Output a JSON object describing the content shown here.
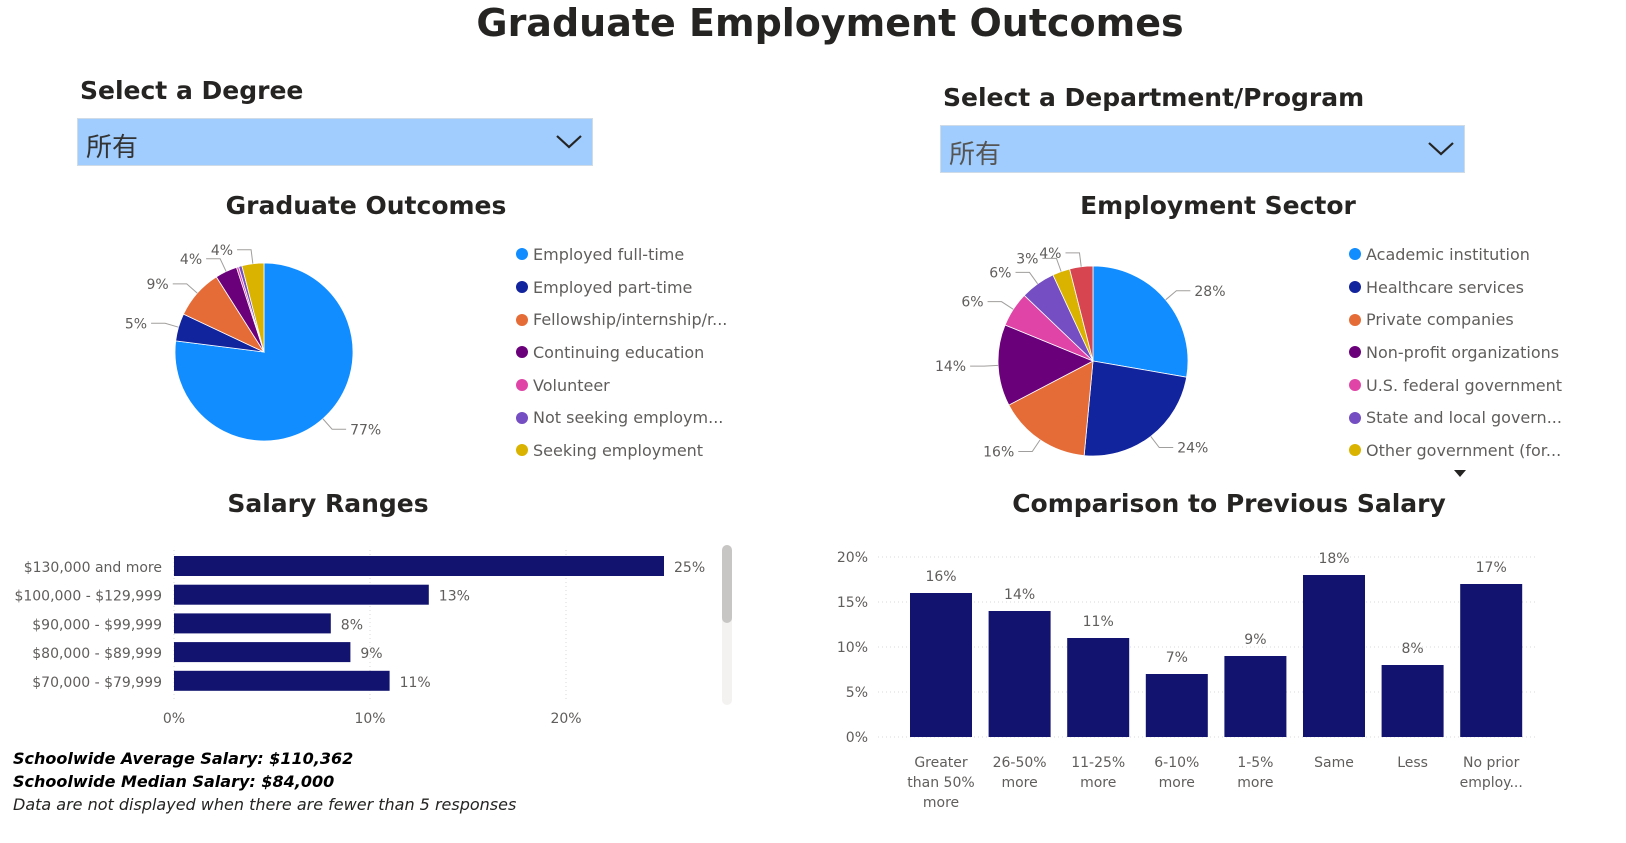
{
  "page_title": "Graduate Employment Outcomes",
  "degree_slicer": {
    "label": "Select a Degree",
    "value": "所有"
  },
  "department_slicer": {
    "label": "Select a Department/Program",
    "value": "所有"
  },
  "notes": {
    "average": "Schoolwide Average Salary: $110,362",
    "median": "Schoolwide Median Salary: $84,000",
    "disclaimer": "Data are not displayed when there are fewer than 5 responses"
  },
  "icons": {
    "dropdown": "chevron-down-icon",
    "legend_more": "caret-down-icon",
    "scrollbar": "scrollbar-thumb"
  },
  "chart_data": [
    {
      "id": "graduate_outcomes",
      "type": "pie",
      "title": "Graduate Outcomes",
      "legend_position": "right",
      "slices": [
        {
          "label": "Employed full-time",
          "value": 77,
          "color": "#118dff"
        },
        {
          "label": "Employed part-time",
          "value": 5,
          "color": "#12239e"
        },
        {
          "label": "Fellowship/internship/r...",
          "value": 9,
          "color": "#e66c37"
        },
        {
          "label": "Continuing education",
          "value": 4,
          "color": "#6b007b"
        },
        {
          "label": "Volunteer",
          "value": 0.4,
          "color": "#e044a7"
        },
        {
          "label": "Not seeking employm...",
          "value": 0.6,
          "color": "#744ec2"
        },
        {
          "label": "Seeking employment",
          "value": 4,
          "color": "#d9b300"
        }
      ],
      "data_labels": [
        "77%",
        "5%",
        "9%",
        "4%",
        "",
        "",
        "4%"
      ]
    },
    {
      "id": "employment_sector",
      "type": "pie",
      "title": "Employment Sector",
      "legend_position": "right",
      "slices": [
        {
          "label": "Academic institution",
          "value": 28,
          "color": "#118dff"
        },
        {
          "label": "Healthcare services",
          "value": 24,
          "color": "#12239e"
        },
        {
          "label": "Private companies",
          "value": 16,
          "color": "#e66c37"
        },
        {
          "label": "Non-profit organizations",
          "value": 14,
          "color": "#6b007b"
        },
        {
          "label": "U.S. federal government",
          "value": 6,
          "color": "#e044a7"
        },
        {
          "label": "State and local govern...",
          "value": 6,
          "color": "#744ec2"
        },
        {
          "label": "Other government (for...",
          "value": 3,
          "color": "#d9b300"
        },
        {
          "label": "",
          "value": 4,
          "color": "#d64550"
        }
      ],
      "data_labels": [
        "28%",
        "24%",
        "16%",
        "14%",
        "6%",
        "6%",
        "3%",
        "4%"
      ],
      "legend_visible_count": 7
    },
    {
      "id": "salary_ranges",
      "type": "bar",
      "orientation": "horizontal",
      "title": "Salary Ranges",
      "categories": [
        "$130,000 and more",
        "$100,000 - $129,999",
        "$90,000 - $99,999",
        "$80,000 - $89,999",
        "$70,000 - $79,999"
      ],
      "values": [
        25,
        13,
        8,
        9,
        11
      ],
      "data_labels": [
        "25%",
        "13%",
        "8%",
        "9%",
        "11%"
      ],
      "xlim": [
        0,
        28
      ],
      "xticks": [
        0,
        10,
        20
      ],
      "xtick_labels": [
        "0%",
        "10%",
        "20%"
      ],
      "color": "#12136e",
      "grid": true
    },
    {
      "id": "comparison_previous_salary",
      "type": "bar",
      "orientation": "vertical",
      "title": "Comparison to Previous Salary",
      "categories": [
        [
          "Greater",
          "than 50%",
          "more"
        ],
        [
          "26-50%",
          "more"
        ],
        [
          "11-25%",
          "more"
        ],
        [
          "6-10%",
          "more"
        ],
        [
          "1-5%",
          "more"
        ],
        [
          "Same"
        ],
        [
          "Less"
        ],
        [
          "No prior",
          "employ..."
        ]
      ],
      "values": [
        16,
        14,
        11,
        7,
        9,
        18,
        8,
        17
      ],
      "data_labels": [
        "16%",
        "14%",
        "11%",
        "7%",
        "9%",
        "18%",
        "8%",
        "17%"
      ],
      "ylim": [
        0,
        20
      ],
      "yticks": [
        0,
        5,
        10,
        15,
        20
      ],
      "ytick_labels": [
        "0%",
        "5%",
        "10%",
        "15%",
        "20%"
      ],
      "color": "#12136e",
      "grid": true
    }
  ]
}
